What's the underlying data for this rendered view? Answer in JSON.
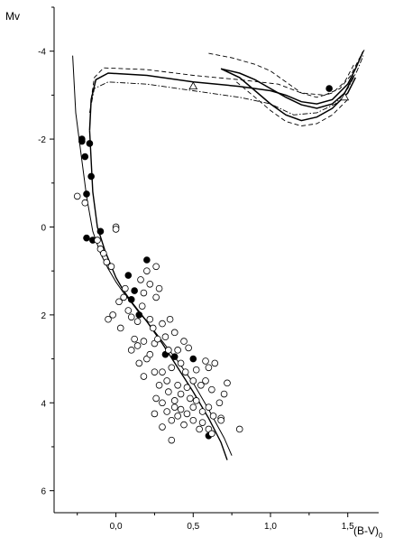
{
  "chart_data": {
    "type": "scatter",
    "title": "",
    "ylabel": "Mv",
    "xlabel_main": "(B-V)",
    "xlabel_subscript": "0",
    "xlim": [
      -0.4,
      1.7
    ],
    "ylim": [
      6.5,
      -5.0
    ],
    "y_inverted": true,
    "x_ticks": [
      0.0,
      0.5,
      1.0,
      1.5
    ],
    "x_tick_labels": [
      "0,0",
      "0,5",
      "1,0",
      "1,5"
    ],
    "y_ticks": [
      -4,
      -2,
      0,
      2,
      4,
      6
    ],
    "y_tick_labels": [
      "-4",
      "-2",
      "0",
      "2",
      "4",
      "6"
    ],
    "grid": false,
    "series": [
      {
        "marker": "filled-circle",
        "points": [
          [
            -0.22,
            -1.95
          ],
          [
            -0.22,
            -2.0
          ],
          [
            -0.2,
            -1.6
          ],
          [
            -0.17,
            -1.9
          ],
          [
            -0.16,
            -1.15
          ],
          [
            -0.19,
            -0.75
          ],
          [
            -0.19,
            0.25
          ],
          [
            -0.15,
            0.3
          ],
          [
            -0.1,
            0.1
          ],
          [
            0.08,
            1.1
          ],
          [
            0.12,
            1.45
          ],
          [
            0.1,
            1.65
          ],
          [
            0.2,
            0.75
          ],
          [
            0.15,
            2.0
          ],
          [
            0.32,
            2.9
          ],
          [
            0.38,
            2.95
          ],
          [
            0.5,
            3.0
          ],
          [
            0.6,
            4.75
          ],
          [
            1.38,
            -3.15
          ]
        ]
      },
      {
        "marker": "open-circle",
        "points": [
          [
            -0.25,
            -0.7
          ],
          [
            -0.2,
            -0.55
          ],
          [
            -0.12,
            0.3
          ],
          [
            -0.1,
            0.5
          ],
          [
            -0.08,
            0.6
          ],
          [
            -0.06,
            0.8
          ],
          [
            -0.03,
            0.9
          ],
          [
            0.0,
            0.0
          ],
          [
            0.0,
            0.05
          ],
          [
            0.02,
            1.7
          ],
          [
            0.05,
            1.6
          ],
          [
            -0.05,
            2.1
          ],
          [
            -0.02,
            2.0
          ],
          [
            0.03,
            2.3
          ],
          [
            0.06,
            1.4
          ],
          [
            0.08,
            1.9
          ],
          [
            0.1,
            2.05
          ],
          [
            0.12,
            2.55
          ],
          [
            0.14,
            2.15
          ],
          [
            0.16,
            1.2
          ],
          [
            0.17,
            1.8
          ],
          [
            0.18,
            1.5
          ],
          [
            0.2,
            1.0
          ],
          [
            0.22,
            1.3
          ],
          [
            0.22,
            2.1
          ],
          [
            0.24,
            2.3
          ],
          [
            0.26,
            0.9
          ],
          [
            0.26,
            1.6
          ],
          [
            0.28,
            1.4
          ],
          [
            0.25,
            2.65
          ],
          [
            0.27,
            2.55
          ],
          [
            0.3,
            2.2
          ],
          [
            0.32,
            2.5
          ],
          [
            0.35,
            2.1
          ],
          [
            0.38,
            2.4
          ],
          [
            0.4,
            2.8
          ],
          [
            0.44,
            2.6
          ],
          [
            0.47,
            2.75
          ],
          [
            0.34,
            2.8
          ],
          [
            0.36,
            3.2
          ],
          [
            0.42,
            3.1
          ],
          [
            0.45,
            3.3
          ],
          [
            0.5,
            3.5
          ],
          [
            0.52,
            3.25
          ],
          [
            0.55,
            3.6
          ],
          [
            0.58,
            3.5
          ],
          [
            0.62,
            3.7
          ],
          [
            0.6,
            3.2
          ],
          [
            0.64,
            3.1
          ],
          [
            0.58,
            3.05
          ],
          [
            0.3,
            3.3
          ],
          [
            0.33,
            3.5
          ],
          [
            0.4,
            3.6
          ],
          [
            0.42,
            3.8
          ],
          [
            0.46,
            3.65
          ],
          [
            0.48,
            3.9
          ],
          [
            0.5,
            4.1
          ],
          [
            0.52,
            3.95
          ],
          [
            0.56,
            4.2
          ],
          [
            0.6,
            4.1
          ],
          [
            0.63,
            4.3
          ],
          [
            0.67,
            4.0
          ],
          [
            0.7,
            3.8
          ],
          [
            0.72,
            3.55
          ],
          [
            0.68,
            4.35
          ],
          [
            0.26,
            3.9
          ],
          [
            0.3,
            4.0
          ],
          [
            0.33,
            4.2
          ],
          [
            0.36,
            4.4
          ],
          [
            0.38,
            4.1
          ],
          [
            0.4,
            4.3
          ],
          [
            0.44,
            4.5
          ],
          [
            0.46,
            4.25
          ],
          [
            0.5,
            4.4
          ],
          [
            0.54,
            4.6
          ],
          [
            0.56,
            4.45
          ],
          [
            0.6,
            4.6
          ],
          [
            0.62,
            4.7
          ],
          [
            0.68,
            4.4
          ],
          [
            0.8,
            4.6
          ],
          [
            0.15,
            3.1
          ],
          [
            0.18,
            3.4
          ],
          [
            0.2,
            3.0
          ],
          [
            0.22,
            2.9
          ],
          [
            0.25,
            3.3
          ],
          [
            0.28,
            3.6
          ],
          [
            0.34,
            3.75
          ],
          [
            0.38,
            3.95
          ],
          [
            0.42,
            4.15
          ],
          [
            0.3,
            4.55
          ],
          [
            0.25,
            4.25
          ],
          [
            0.36,
            4.85
          ],
          [
            0.1,
            2.8
          ],
          [
            0.14,
            2.7
          ],
          [
            0.18,
            2.6
          ]
        ]
      },
      {
        "marker": "open-triangle",
        "points": [
          [
            0.5,
            -3.2
          ],
          [
            1.48,
            -2.95
          ]
        ]
      }
    ],
    "curves": [
      {
        "style": "solid",
        "width": 1.0,
        "points": [
          [
            -0.28,
            -3.9
          ],
          [
            -0.26,
            -2.6
          ],
          [
            -0.22,
            -1.5
          ],
          [
            -0.19,
            -0.7
          ],
          [
            -0.15,
            0.1
          ],
          [
            -0.1,
            0.6
          ],
          [
            -0.05,
            0.95
          ],
          [
            0.0,
            1.25
          ],
          [
            0.05,
            1.5
          ],
          [
            0.1,
            1.72
          ],
          [
            0.15,
            1.95
          ],
          [
            0.2,
            2.15
          ],
          [
            0.3,
            2.6
          ],
          [
            0.4,
            3.05
          ],
          [
            0.5,
            3.55
          ],
          [
            0.6,
            4.15
          ],
          [
            0.7,
            4.8
          ],
          [
            0.75,
            5.2
          ]
        ]
      },
      {
        "style": "solid",
        "width": 1.4,
        "points": [
          [
            -0.17,
            -2.2
          ],
          [
            -0.15,
            -0.8
          ],
          [
            -0.12,
            0.0
          ],
          [
            -0.07,
            0.55
          ],
          [
            0.0,
            1.15
          ],
          [
            0.05,
            1.45
          ],
          [
            0.1,
            1.7
          ],
          [
            0.2,
            2.15
          ],
          [
            0.3,
            2.65
          ],
          [
            0.4,
            3.2
          ],
          [
            0.5,
            3.75
          ],
          [
            0.6,
            4.35
          ],
          [
            0.68,
            4.9
          ],
          [
            0.72,
            5.3
          ]
        ]
      },
      {
        "style": "solid",
        "width": 1.5,
        "points": [
          [
            -0.17,
            -2.2
          ],
          [
            -0.16,
            -2.9
          ],
          [
            -0.13,
            -3.35
          ],
          [
            -0.05,
            -3.5
          ],
          [
            0.2,
            -3.45
          ],
          [
            0.5,
            -3.3
          ],
          [
            0.8,
            -3.2
          ],
          [
            1.0,
            -3.1
          ],
          [
            1.1,
            -3.0
          ],
          [
            1.2,
            -2.85
          ],
          [
            1.3,
            -2.8
          ],
          [
            1.4,
            -2.9
          ],
          [
            1.5,
            -3.25
          ],
          [
            1.55,
            -3.6
          ],
          [
            1.6,
            -4.0
          ]
        ]
      },
      {
        "style": "dashed",
        "width": 0.9,
        "points": [
          [
            -0.16,
            -2.9
          ],
          [
            -0.14,
            -3.4
          ],
          [
            -0.08,
            -3.62
          ],
          [
            0.2,
            -3.58
          ],
          [
            0.5,
            -3.45
          ],
          [
            0.8,
            -3.35
          ],
          [
            1.05,
            -3.25
          ],
          [
            1.2,
            -3.05
          ],
          [
            1.35,
            -3.0
          ],
          [
            1.45,
            -3.15
          ],
          [
            1.52,
            -3.45
          ],
          [
            1.57,
            -3.8
          ],
          [
            1.61,
            -4.05
          ]
        ]
      },
      {
        "style": "dashdot",
        "width": 0.9,
        "points": [
          [
            -0.17,
            -2.6
          ],
          [
            -0.14,
            -3.15
          ],
          [
            -0.05,
            -3.3
          ],
          [
            0.2,
            -3.25
          ],
          [
            0.5,
            -3.1
          ],
          [
            0.8,
            -2.95
          ],
          [
            1.0,
            -2.8
          ],
          [
            1.15,
            -2.55
          ],
          [
            1.3,
            -2.6
          ],
          [
            1.42,
            -2.8
          ],
          [
            1.5,
            -3.15
          ],
          [
            1.56,
            -3.55
          ],
          [
            1.6,
            -3.9
          ]
        ]
      },
      {
        "style": "solid",
        "width": 1.5,
        "points": [
          [
            0.68,
            -3.6
          ],
          [
            0.8,
            -3.5
          ],
          [
            0.9,
            -3.35
          ],
          [
            1.0,
            -3.15
          ],
          [
            1.1,
            -2.95
          ],
          [
            1.2,
            -2.78
          ],
          [
            1.3,
            -2.7
          ],
          [
            1.4,
            -2.8
          ],
          [
            1.48,
            -3.05
          ],
          [
            1.54,
            -3.45
          ]
        ]
      },
      {
        "style": "solid",
        "width": 1.5,
        "points": [
          [
            0.68,
            -3.6
          ],
          [
            0.8,
            -3.4
          ],
          [
            0.9,
            -3.1
          ],
          [
            1.0,
            -2.8
          ],
          [
            1.1,
            -2.55
          ],
          [
            1.2,
            -2.42
          ],
          [
            1.3,
            -2.5
          ],
          [
            1.4,
            -2.7
          ],
          [
            1.5,
            -3.05
          ],
          [
            1.55,
            -3.4
          ]
        ]
      },
      {
        "style": "dashed",
        "width": 0.9,
        "points": [
          [
            0.6,
            -3.95
          ],
          [
            0.75,
            -3.85
          ],
          [
            0.9,
            -3.7
          ],
          [
            1.0,
            -3.55
          ],
          [
            1.1,
            -3.3
          ],
          [
            1.2,
            -3.05
          ],
          [
            1.3,
            -2.95
          ],
          [
            1.4,
            -3.05
          ],
          [
            1.48,
            -3.3
          ],
          [
            1.54,
            -3.7
          ]
        ]
      },
      {
        "style": "dashed",
        "width": 0.9,
        "points": [
          [
            0.78,
            -3.3
          ],
          [
            0.9,
            -2.95
          ],
          [
            1.0,
            -2.65
          ],
          [
            1.1,
            -2.4
          ],
          [
            1.2,
            -2.3
          ],
          [
            1.3,
            -2.35
          ],
          [
            1.4,
            -2.55
          ],
          [
            1.5,
            -2.9
          ]
        ]
      }
    ]
  }
}
